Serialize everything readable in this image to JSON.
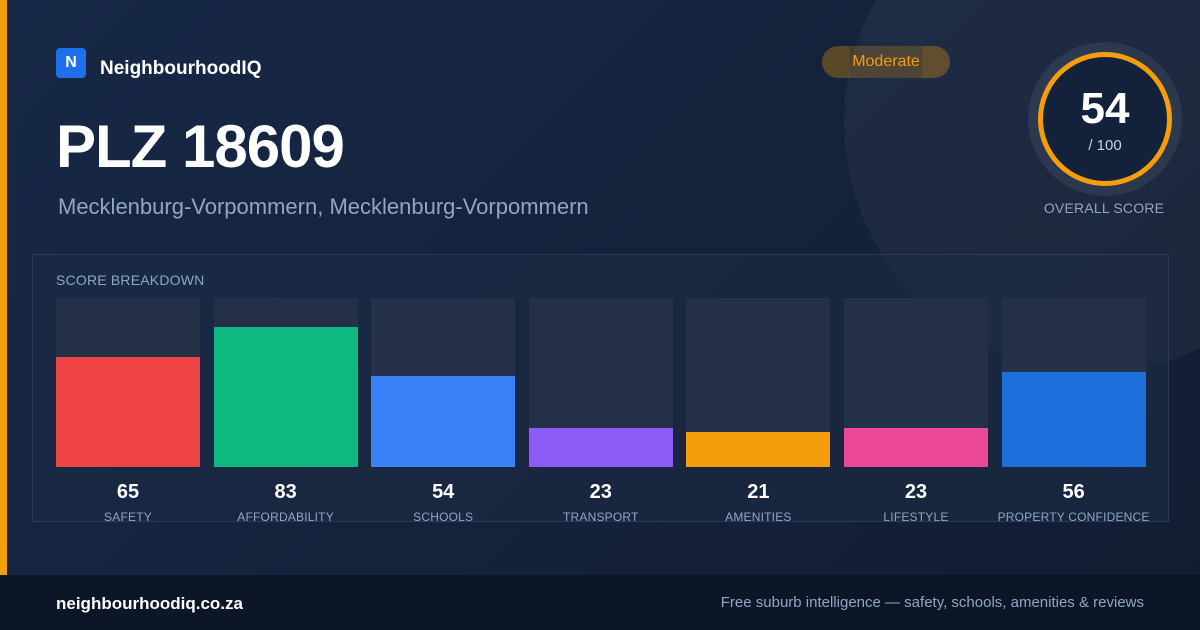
{
  "brand": {
    "logo_letter": "N",
    "name": "NeighbourhoodIQ"
  },
  "badge": {
    "label": "Moderate",
    "color": "#f59e0b"
  },
  "header": {
    "title": "PLZ 18609",
    "subtitle": "Mecklenburg-Vorpommern, Mecklenburg-Vorpommern"
  },
  "overall": {
    "score": "54",
    "max": "/ 100",
    "label": "OVERALL SCORE",
    "ring_color": "#f59e0b"
  },
  "breakdown": {
    "title": "SCORE BREAKDOWN",
    "items": [
      {
        "label": "SAFETY",
        "value": 65,
        "color": "#ef4444"
      },
      {
        "label": "AFFORDABILITY",
        "value": 83,
        "color": "#10b981"
      },
      {
        "label": "SCHOOLS",
        "value": 54,
        "color": "#3b82f6"
      },
      {
        "label": "TRANSPORT",
        "value": 23,
        "color": "#8b5cf6"
      },
      {
        "label": "AMENITIES",
        "value": 21,
        "color": "#f59e0b"
      },
      {
        "label": "LIFESTYLE",
        "value": 23,
        "color": "#ec4899"
      },
      {
        "label": "PROPERTY CONFIDENCE",
        "value": 56,
        "color": "#1d6fdb"
      }
    ]
  },
  "chart_data": {
    "type": "bar",
    "title": "SCORE BREAKDOWN",
    "categories": [
      "SAFETY",
      "AFFORDABILITY",
      "SCHOOLS",
      "TRANSPORT",
      "AMENITIES",
      "LIFESTYLE",
      "PROPERTY CONFIDENCE"
    ],
    "values": [
      65,
      83,
      54,
      23,
      21,
      23,
      56
    ],
    "ylim": [
      0,
      100
    ],
    "grid": false
  },
  "footer": {
    "domain": "neighbourhoodiq.co.za",
    "tagline": "Free suburb intelligence — safety, schools, amenities & reviews"
  },
  "colors": {
    "accent": "#f59e0b",
    "background": "#16243f",
    "footer": "#0d1626"
  }
}
